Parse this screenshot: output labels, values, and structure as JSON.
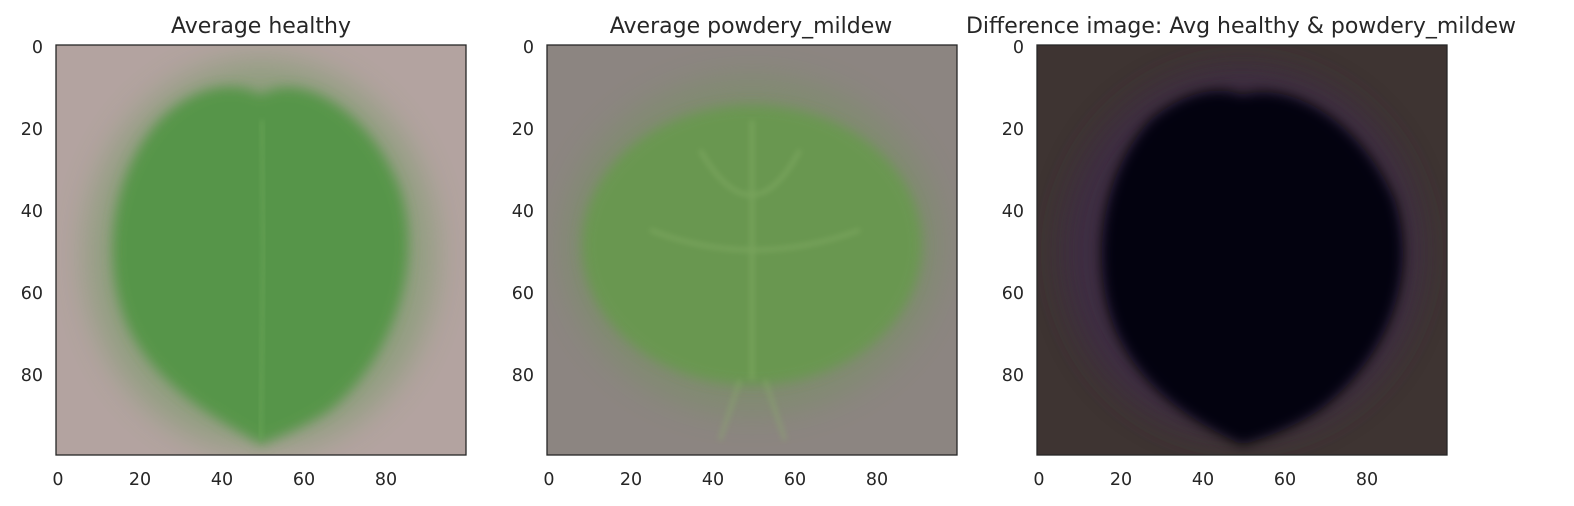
{
  "chart_data": [
    {
      "type": "heatmap",
      "title": "Average healthy",
      "xlabel": "",
      "ylabel": "",
      "image_size": [
        100,
        100
      ],
      "xlim": [
        0,
        100
      ],
      "ylim": [
        100,
        0
      ],
      "x_ticks": [
        0,
        20,
        40,
        60,
        80
      ],
      "y_ticks": [
        0,
        20,
        40,
        60,
        80
      ],
      "grid": false,
      "colors": {
        "background": "#b3a3a0",
        "leaf": "#4e9440",
        "vein": "#6aa658"
      }
    },
    {
      "type": "heatmap",
      "title": "Average powdery_mildew",
      "xlabel": "",
      "ylabel": "",
      "image_size": [
        100,
        100
      ],
      "xlim": [
        0,
        100
      ],
      "ylim": [
        100,
        0
      ],
      "x_ticks": [
        0,
        20,
        40,
        60,
        80
      ],
      "y_ticks": [
        0,
        20,
        40,
        60,
        80
      ],
      "grid": false,
      "colors": {
        "background": "#8c8581",
        "leaf": "#669a4c",
        "vein": "#8cb46c"
      }
    },
    {
      "type": "heatmap",
      "title": "Difference image: Avg healthy & powdery_mildew",
      "xlabel": "",
      "ylabel": "",
      "image_size": [
        100,
        100
      ],
      "xlim": [
        0,
        100
      ],
      "ylim": [
        100,
        0
      ],
      "x_ticks": [
        0,
        20,
        40,
        60,
        80
      ],
      "y_ticks": [
        0,
        20,
        40,
        60,
        80
      ],
      "grid": false,
      "colors": {
        "background": "#3e3432",
        "leaf": "#050307",
        "rim": "#3c2a46"
      }
    }
  ]
}
